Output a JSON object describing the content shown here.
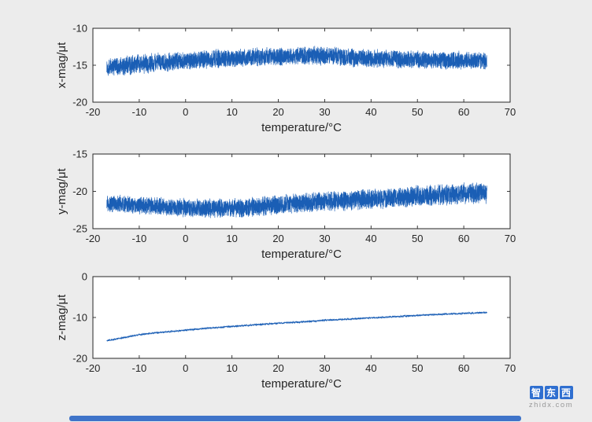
{
  "figure": {
    "background": "#ececec",
    "plot_background": "#ffffff",
    "axis_color": "#262626",
    "line_color": "#1a5eb5"
  },
  "watermark": {
    "chars": [
      "智",
      "东",
      "西"
    ],
    "domain": "zhidx.com",
    "tile_color": "#2f6fd0",
    "domain_color": "#9a9a9a"
  },
  "footer": {
    "bar_color": "#3f74c9"
  },
  "chart_data": [
    {
      "type": "line",
      "title": "",
      "xlabel": "temperature/°C",
      "ylabel": "x-mag/μt",
      "xlim": [
        -20,
        70
      ],
      "ylim": [
        -20,
        -10
      ],
      "xticks": [
        -20,
        -10,
        0,
        10,
        20,
        30,
        40,
        50,
        60,
        70
      ],
      "yticks": [
        -20,
        -15,
        -10
      ],
      "grid": false,
      "legend": false,
      "series": [
        {
          "name": "x-mag",
          "x_range": [
            -17,
            65
          ],
          "trend": [
            [
              -17,
              -15.3
            ],
            [
              -12,
              -15.0
            ],
            [
              -6,
              -14.6
            ],
            [
              0,
              -14.4
            ],
            [
              8,
              -14.1
            ],
            [
              16,
              -13.9
            ],
            [
              24,
              -13.7
            ],
            [
              30,
              -13.7
            ],
            [
              38,
              -14.0
            ],
            [
              46,
              -14.2
            ],
            [
              56,
              -14.3
            ],
            [
              65,
              -14.4
            ]
          ],
          "noise_amplitude": 1.25,
          "noise_taper": [
            1.05,
            0.95
          ],
          "samples": 4500
        }
      ]
    },
    {
      "type": "line",
      "title": "",
      "xlabel": "temperature/°C",
      "ylabel": "y-mag/μt",
      "xlim": [
        -20,
        70
      ],
      "ylim": [
        -25,
        -15
      ],
      "xticks": [
        -20,
        -10,
        0,
        10,
        20,
        30,
        40,
        50,
        60,
        70
      ],
      "yticks": [
        -25,
        -20,
        -15
      ],
      "grid": false,
      "legend": false,
      "series": [
        {
          "name": "y-mag",
          "x_range": [
            -17,
            65
          ],
          "trend": [
            [
              -17,
              -21.6
            ],
            [
              -12,
              -21.8
            ],
            [
              -6,
              -22.0
            ],
            [
              0,
              -22.2
            ],
            [
              6,
              -22.3
            ],
            [
              12,
              -22.2
            ],
            [
              18,
              -21.9
            ],
            [
              24,
              -21.6
            ],
            [
              32,
              -21.3
            ],
            [
              40,
              -21.0
            ],
            [
              48,
              -20.7
            ],
            [
              56,
              -20.4
            ],
            [
              65,
              -20.2
            ]
          ],
          "noise_amplitude": 1.15,
          "noise_taper": [
            1.0,
            1.25
          ],
          "samples": 4500
        }
      ]
    },
    {
      "type": "line",
      "title": "",
      "xlabel": "temperature/°C",
      "ylabel": "z-mag/μt",
      "xlim": [
        -20,
        70
      ],
      "ylim": [
        -20,
        0
      ],
      "xticks": [
        -20,
        -10,
        0,
        10,
        20,
        30,
        40,
        50,
        60,
        70
      ],
      "yticks": [
        -20,
        -10,
        0
      ],
      "grid": false,
      "legend": false,
      "series": [
        {
          "name": "z-mag",
          "x_range": [
            -17,
            65
          ],
          "trend": [
            [
              -17,
              -15.7
            ],
            [
              -10,
              -14.2
            ],
            [
              -5,
              -13.6
            ],
            [
              0,
              -13.1
            ],
            [
              5,
              -12.6
            ],
            [
              10,
              -12.2
            ],
            [
              15,
              -11.8
            ],
            [
              20,
              -11.4
            ],
            [
              25,
              -11.1
            ],
            [
              30,
              -10.7
            ],
            [
              35,
              -10.4
            ],
            [
              40,
              -10.1
            ],
            [
              45,
              -9.8
            ],
            [
              50,
              -9.5
            ],
            [
              55,
              -9.2
            ],
            [
              60,
              -9.0
            ],
            [
              65,
              -8.8
            ]
          ],
          "noise_amplitude": 0.22,
          "noise_taper": [
            1.0,
            1.0
          ],
          "samples": 3000
        }
      ]
    }
  ]
}
